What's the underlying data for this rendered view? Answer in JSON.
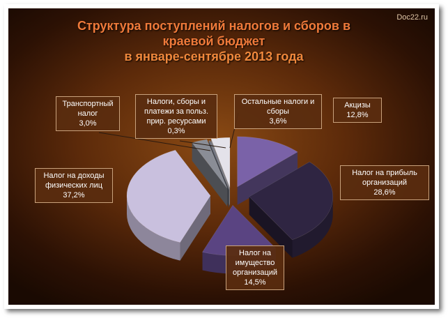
{
  "watermark": "Doc22.ru",
  "title": {
    "line1": "Структура поступлений налогов и сборов в",
    "line2": "краевой бюджет",
    "line3": "в январе-сентябре  2013 года"
  },
  "colors": {
    "background_center": "#8a4a14",
    "background_edge": "#1a0a02",
    "label_box": "#5a2d0f"
  },
  "chart_data": {
    "type": "pie",
    "three_d": true,
    "exploded": true,
    "series": [
      {
        "name": "Акцизы",
        "label": [
          "Акцизы"
        ],
        "value": 12.8,
        "pct_label": "12,8%",
        "color": "#7a62a8"
      },
      {
        "name": "Налог на прибыль организаций",
        "label": [
          "Налог на прибыль",
          "организаций"
        ],
        "value": 28.6,
        "pct_label": "28,6%",
        "color": "#2f2542"
      },
      {
        "name": "Налог на имущество организаций",
        "label": [
          "Налог на",
          "имущество",
          "организаций"
        ],
        "value": 14.5,
        "pct_label": "14,5%",
        "color": "#5a4482"
      },
      {
        "name": "Налог на доходы физических лиц",
        "label": [
          "Налог на доходы",
          "физических лиц"
        ],
        "value": 37.2,
        "pct_label": "37,2%",
        "color": "#c9c0de"
      },
      {
        "name": "Транспортный налог",
        "label": [
          "Транспортный",
          "налог"
        ],
        "value": 3.0,
        "pct_label": "3,0%",
        "color": "#8a8d96"
      },
      {
        "name": "Налоги, сборы и платежи за польз. прир. ресурсами",
        "label": [
          "Налоги, сборы и",
          "платежи за польз.",
          "прир. ресурсами"
        ],
        "value": 0.3,
        "pct_label": "0,3%",
        "color": "#6e7280"
      },
      {
        "name": "Остальные налоги и сборы",
        "label": [
          "Остальные  налоги и",
          "сборы"
        ],
        "value": 3.6,
        "pct_label": "3,6%",
        "color": "#e4e2ea"
      }
    ]
  }
}
